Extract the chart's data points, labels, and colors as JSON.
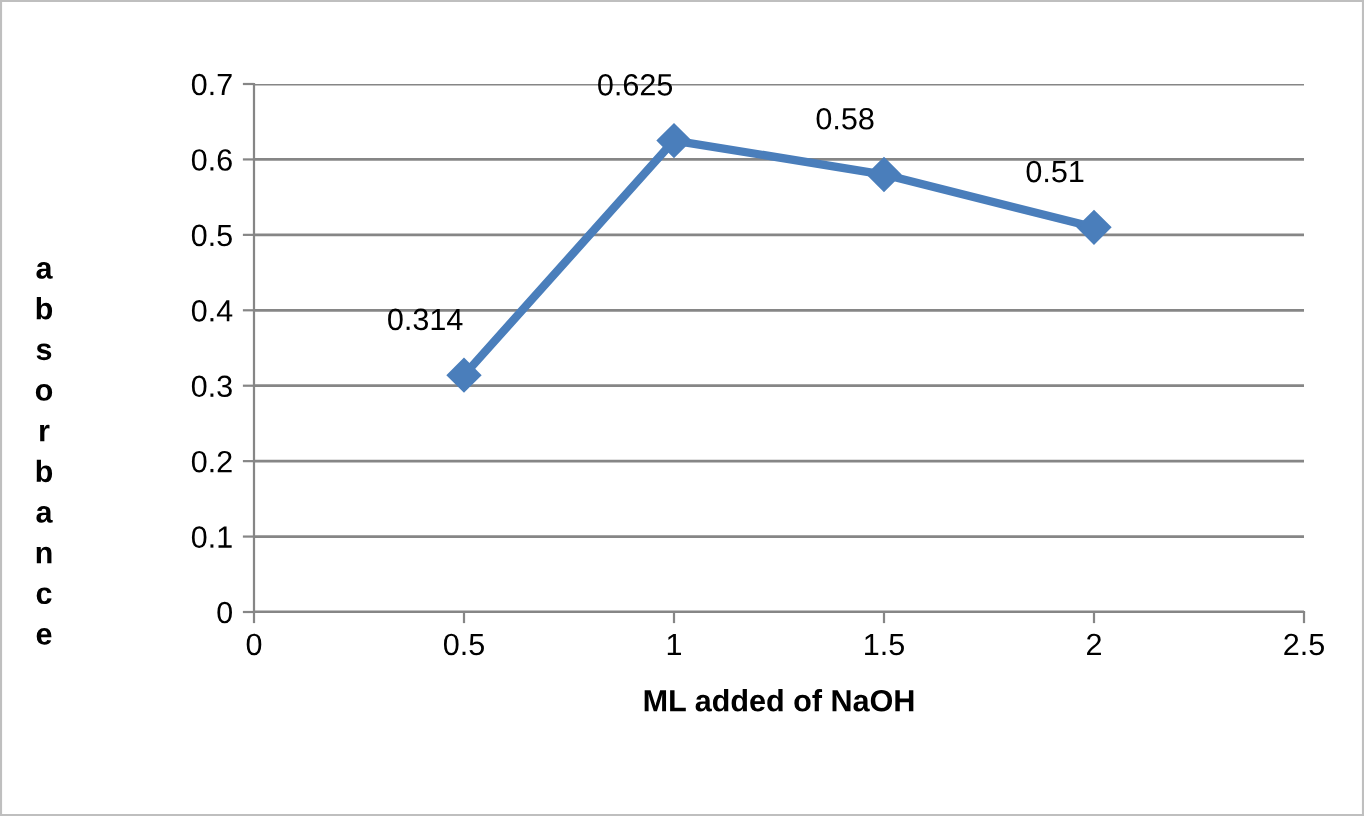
{
  "chart_data": {
    "type": "line",
    "xlabel": "ML added of NaOH",
    "ylabel": "absorbance",
    "x": [
      0.5,
      1,
      1.5,
      2
    ],
    "series": [
      {
        "color": "#4a7ebb",
        "values": [
          0.314,
          0.625,
          0.58,
          0.51
        ]
      }
    ],
    "xlim": [
      0,
      2.5
    ],
    "xticks": [
      0,
      0.5,
      1,
      1.5,
      2,
      2.5
    ],
    "ylim": [
      0,
      0.7
    ],
    "yticks": [
      0,
      0.1,
      0.2,
      0.3,
      0.4,
      0.5,
      0.6,
      0.7
    ],
    "grid": "y",
    "marker": "diamond",
    "line_style": "solid",
    "data_labels": true,
    "legend": false
  }
}
